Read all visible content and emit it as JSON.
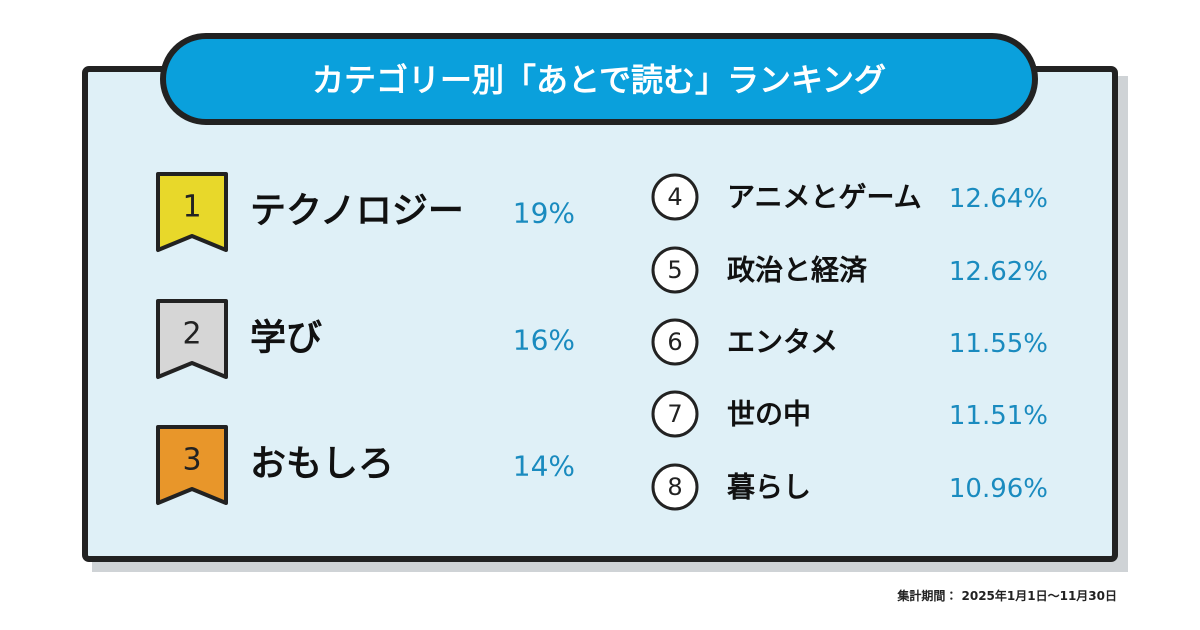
{
  "title": "カテゴリー別「あとで読む」ランキング",
  "rankings": [
    {
      "rank": "1",
      "name": "テクノロジー",
      "share": "19%"
    },
    {
      "rank": "2",
      "name": "学び",
      "share": "16%"
    },
    {
      "rank": "3",
      "name": "おもしろ",
      "share": "14%"
    },
    {
      "rank": "4",
      "name": "アニメとゲーム",
      "share": "12.64%"
    },
    {
      "rank": "5",
      "name": "政治と経済",
      "share": "12.62%"
    },
    {
      "rank": "6",
      "name": "エンタメ",
      "share": "11.55%"
    },
    {
      "rank": "7",
      "name": "世の中",
      "share": "11.51%"
    },
    {
      "rank": "8",
      "name": "暮らし",
      "share": "10.96%"
    }
  ],
  "note": "集計期間： 2025年1月1日〜11月30日"
}
